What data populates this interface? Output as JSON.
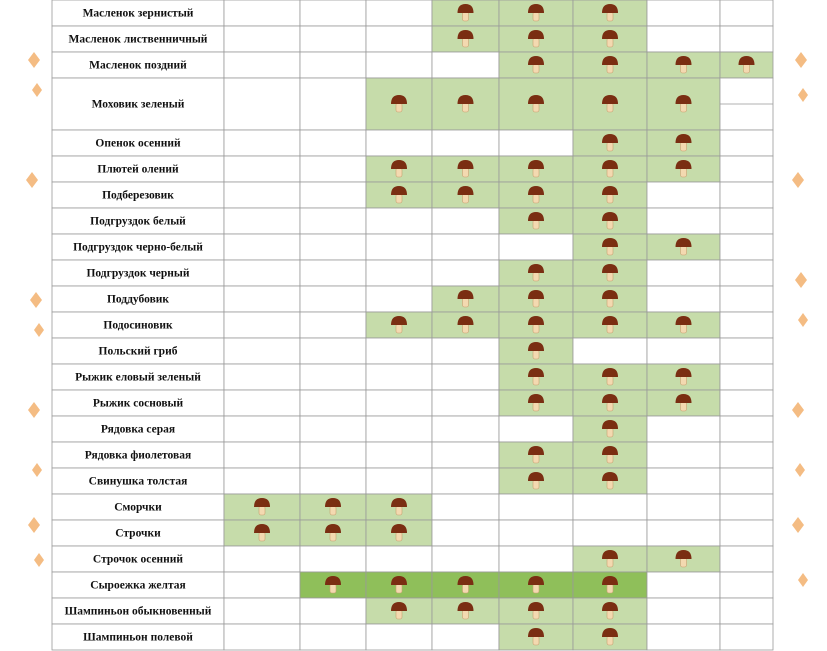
{
  "table": {
    "rows": [
      {
        "name": "Масленок зернистый",
        "cells": [
          false,
          false,
          false,
          true,
          true,
          true,
          false,
          false
        ]
      },
      {
        "name": "Масленок лиственничный",
        "cells": [
          false,
          false,
          false,
          true,
          true,
          true,
          false,
          false
        ]
      },
      {
        "name": "Масленок поздний",
        "cells": [
          false,
          false,
          false,
          false,
          true,
          true,
          true,
          true
        ]
      },
      {
        "name": "Моховик зеленый",
        "cells": [
          false,
          false,
          true,
          true,
          true,
          true,
          true,
          false
        ],
        "tall": true
      },
      {
        "name": "Опенок осенний",
        "cells": [
          false,
          false,
          false,
          false,
          false,
          true,
          true,
          false
        ]
      },
      {
        "name": "Плютей олений",
        "cells": [
          false,
          false,
          true,
          true,
          true,
          true,
          true,
          false
        ]
      },
      {
        "name": "Подберезовик",
        "cells": [
          false,
          false,
          true,
          true,
          true,
          true,
          false,
          false
        ]
      },
      {
        "name": "Подгруздок белый",
        "cells": [
          false,
          false,
          false,
          false,
          true,
          true,
          false,
          false
        ]
      },
      {
        "name": "Подгруздок черно-белый",
        "cells": [
          false,
          false,
          false,
          false,
          false,
          true,
          true,
          false
        ]
      },
      {
        "name": "Подгруздок черный",
        "cells": [
          false,
          false,
          false,
          false,
          true,
          true,
          false,
          false
        ]
      },
      {
        "name": "Поддубовик",
        "cells": [
          false,
          false,
          false,
          true,
          true,
          true,
          false,
          false
        ]
      },
      {
        "name": "Подосиновик",
        "cells": [
          false,
          false,
          true,
          true,
          true,
          true,
          true,
          false
        ]
      },
      {
        "name": "Польский гриб",
        "cells": [
          false,
          false,
          false,
          false,
          true,
          false,
          false,
          false
        ]
      },
      {
        "name": "Рыжик еловый зеленый",
        "cells": [
          false,
          false,
          false,
          false,
          true,
          true,
          true,
          false
        ]
      },
      {
        "name": "Рыжик сосновый",
        "cells": [
          false,
          false,
          false,
          false,
          true,
          true,
          true,
          false
        ]
      },
      {
        "name": "Рядовка серая",
        "cells": [
          false,
          false,
          false,
          false,
          false,
          true,
          false,
          false
        ]
      },
      {
        "name": "Рядовка фиолетовая",
        "cells": [
          false,
          false,
          false,
          false,
          true,
          true,
          false,
          false
        ]
      },
      {
        "name": "Свинушка толстая",
        "cells": [
          false,
          false,
          false,
          false,
          true,
          true,
          false,
          false
        ]
      },
      {
        "name": "Сморчки",
        "cells": [
          true,
          true,
          true,
          false,
          false,
          false,
          false,
          false
        ]
      },
      {
        "name": "Строчки",
        "cells": [
          true,
          true,
          true,
          false,
          false,
          false,
          false,
          false
        ]
      },
      {
        "name": "Строчок осенний",
        "cells": [
          false,
          false,
          false,
          false,
          false,
          true,
          true,
          false
        ]
      },
      {
        "name": "Сыроежка желтая",
        "cells": [
          false,
          true,
          true,
          true,
          true,
          true,
          false,
          false
        ],
        "dark": true
      },
      {
        "name": "Шампиньон обыкновенный",
        "cells": [
          false,
          false,
          true,
          true,
          true,
          true,
          false,
          false
        ]
      },
      {
        "name": "Шампиньон полевой",
        "cells": [
          false,
          false,
          false,
          false,
          true,
          true,
          false,
          false
        ]
      }
    ]
  }
}
